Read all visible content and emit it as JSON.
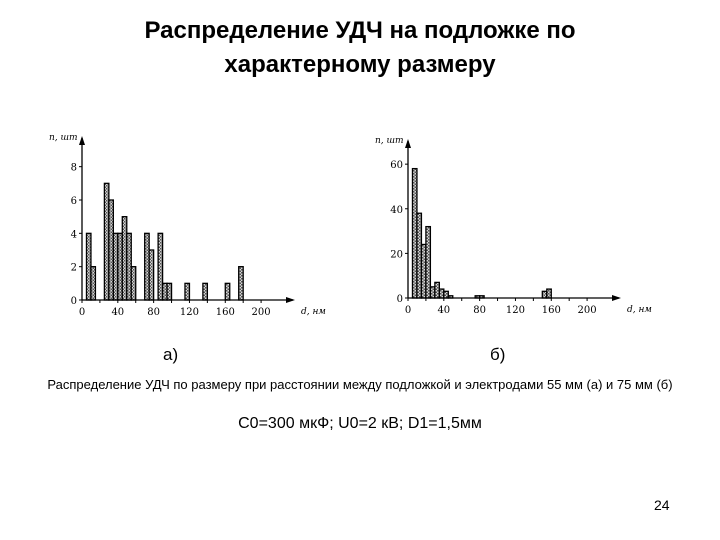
{
  "slide": {
    "title_line1": "Распределение УДЧ на подложке по",
    "title_line2": "характерному размеру",
    "panel_a_label": "а)",
    "panel_b_label": "б)",
    "caption": "Распределение УДЧ по размеру при расстоянии между подложкой и электродами 55 мм (а) и 75 мм (б)",
    "params": "C0=300 мкФ; U0=2 кВ; D1=1,5мм",
    "page_number": "24"
  },
  "chart_data": [
    {
      "type": "bar",
      "panel": "а)",
      "xlabel": "d, нм",
      "ylabel": "n, шт",
      "xlim": [
        0,
        220
      ],
      "ylim": [
        0,
        9
      ],
      "x_ticks": [
        0,
        40,
        80,
        120,
        160,
        200
      ],
      "y_ticks": [
        0,
        2,
        4,
        6,
        8
      ],
      "bins": [
        {
          "x0": 5,
          "x1": 10,
          "value": 4
        },
        {
          "x0": 10,
          "x1": 15,
          "value": 2
        },
        {
          "x0": 25,
          "x1": 30,
          "value": 7
        },
        {
          "x0": 30,
          "x1": 35,
          "value": 6
        },
        {
          "x0": 35,
          "x1": 40,
          "value": 4
        },
        {
          "x0": 40,
          "x1": 45,
          "value": 4
        },
        {
          "x0": 45,
          "x1": 50,
          "value": 5
        },
        {
          "x0": 50,
          "x1": 55,
          "value": 4
        },
        {
          "x0": 55,
          "x1": 60,
          "value": 2
        },
        {
          "x0": 70,
          "x1": 75,
          "value": 4
        },
        {
          "x0": 75,
          "x1": 80,
          "value": 3
        },
        {
          "x0": 85,
          "x1": 90,
          "value": 4
        },
        {
          "x0": 90,
          "x1": 95,
          "value": 1
        },
        {
          "x0": 95,
          "x1": 100,
          "value": 1
        },
        {
          "x0": 115,
          "x1": 120,
          "value": 1
        },
        {
          "x0": 135,
          "x1": 140,
          "value": 1
        },
        {
          "x0": 160,
          "x1": 165,
          "value": 1
        },
        {
          "x0": 175,
          "x1": 180,
          "value": 2
        }
      ]
    },
    {
      "type": "bar",
      "panel": "б)",
      "xlabel": "d, нм",
      "ylabel": "n, шт",
      "xlim": [
        0,
        220
      ],
      "ylim": [
        0,
        65
      ],
      "x_ticks": [
        0,
        40,
        80,
        120,
        160,
        200
      ],
      "y_ticks": [
        0,
        20,
        40,
        60
      ],
      "bins": [
        {
          "x0": 5,
          "x1": 10,
          "value": 58
        },
        {
          "x0": 10,
          "x1": 15,
          "value": 38
        },
        {
          "x0": 15,
          "x1": 20,
          "value": 24
        },
        {
          "x0": 20,
          "x1": 25,
          "value": 32
        },
        {
          "x0": 25,
          "x1": 30,
          "value": 5
        },
        {
          "x0": 30,
          "x1": 35,
          "value": 7
        },
        {
          "x0": 35,
          "x1": 40,
          "value": 4
        },
        {
          "x0": 40,
          "x1": 45,
          "value": 3
        },
        {
          "x0": 45,
          "x1": 50,
          "value": 1
        },
        {
          "x0": 75,
          "x1": 80,
          "value": 1
        },
        {
          "x0": 80,
          "x1": 85,
          "value": 1
        },
        {
          "x0": 150,
          "x1": 155,
          "value": 3
        },
        {
          "x0": 155,
          "x1": 160,
          "value": 4
        }
      ]
    }
  ]
}
